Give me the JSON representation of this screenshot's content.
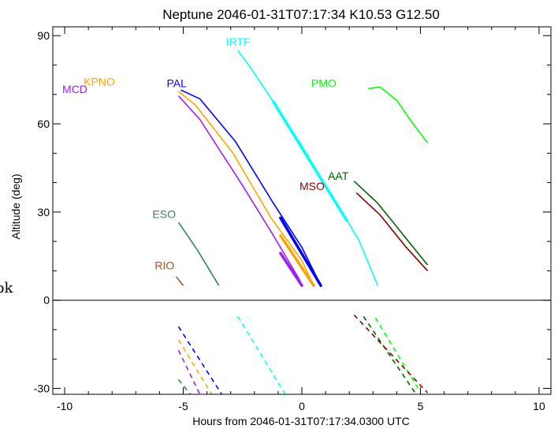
{
  "chart_data": {
    "type": "line",
    "title": "Neptune 2046-01-31T07:17:34  K10.53  G12.50",
    "xlabel": "Hours from 2046-01-31T07:17:34.0300 UTC",
    "ylabel": "Altitude (deg)",
    "xlim": [
      -10.5,
      10.5
    ],
    "ylim": [
      -32,
      93
    ],
    "x_ticks": [
      -10,
      -5,
      0,
      5,
      10
    ],
    "y_ticks": [
      -30,
      0,
      30,
      60,
      90
    ],
    "x_tick_labels": [
      "-10",
      "-5",
      "0",
      "5",
      "10"
    ],
    "y_tick_labels": [
      "-30",
      "0",
      "30",
      "60",
      "90"
    ],
    "zero_line": true,
    "grid": false,
    "legend": "inline labels",
    "edge_text": "pk",
    "series": [
      {
        "name": "IRTF",
        "color": "#00ffff",
        "label_at": [
          -3.2,
          86.5
        ],
        "above": [
          [
            -2.7,
            85
          ],
          [
            -2.2,
            79.5
          ],
          [
            -1.2,
            67.5
          ],
          [
            0.0,
            52.5
          ],
          [
            1.2,
            36.5
          ],
          [
            2.4,
            20.5
          ],
          [
            3.2,
            5
          ]
        ],
        "thick": [
          [
            -1.2,
            67.5
          ],
          [
            1.9,
            27
          ]
        ],
        "below": [
          [
            -2.7,
            -5.5
          ],
          [
            -0.7,
            -32
          ]
        ]
      },
      {
        "name": "PAL",
        "color": "#0000ff",
        "label_at": [
          -5.7,
          72.5
        ],
        "above": [
          [
            -5.1,
            71.5
          ],
          [
            -4.3,
            68.5
          ],
          [
            -2.8,
            54
          ],
          [
            -1.2,
            33
          ],
          [
            0.0,
            18
          ],
          [
            0.8,
            5
          ]
        ],
        "thick": [
          [
            -0.9,
            28
          ],
          [
            0.8,
            5
          ]
        ],
        "below": [
          [
            -5.2,
            -9
          ],
          [
            -3.3,
            -33
          ]
        ]
      },
      {
        "name": "KPNO",
        "color": "#ffa500",
        "label_at": [
          -9.2,
          73
        ],
        "above": [
          [
            -5.2,
            71
          ],
          [
            -4.5,
            66.5
          ],
          [
            -2.9,
            50
          ],
          [
            -1.3,
            28
          ],
          [
            0.0,
            13.5
          ],
          [
            0.5,
            5
          ]
        ],
        "thick": [
          [
            -0.9,
            22
          ],
          [
            0.5,
            5
          ]
        ],
        "below": [
          [
            -5.2,
            -13.5
          ],
          [
            -3.8,
            -32
          ]
        ]
      },
      {
        "name": "MCD",
        "color": "#a020f0",
        "label_at": [
          -10.1,
          70.5
        ],
        "above": [
          [
            -5.2,
            69.5
          ],
          [
            -4.3,
            61.5
          ],
          [
            -2.5,
            39
          ],
          [
            -1.2,
            22
          ],
          [
            -0.1,
            7
          ],
          [
            0.0,
            5
          ]
        ],
        "thick": [
          [
            -0.9,
            16
          ],
          [
            0.0,
            5
          ]
        ],
        "below": [
          [
            -5.2,
            -17
          ],
          [
            -4.3,
            -32
          ]
        ]
      },
      {
        "name": "ESO",
        "color": "#2e8b57",
        "label_at": [
          -6.3,
          28
        ],
        "above": [
          [
            -5.2,
            26.5
          ],
          [
            -4.4,
            17
          ],
          [
            -3.5,
            5
          ]
        ],
        "below": [
          [
            -5.2,
            -27
          ],
          [
            -4.6,
            -33
          ]
        ]
      },
      {
        "name": "RIO",
        "color": "#a0522d",
        "label_at": [
          -6.2,
          10.5
        ],
        "above": [
          [
            -5.3,
            8
          ],
          [
            -5.0,
            5
          ]
        ],
        "below": []
      },
      {
        "name": "PMO",
        "color": "#00ff00",
        "label_at": [
          0.4,
          72.5
        ],
        "above": [
          [
            2.8,
            72
          ],
          [
            3.3,
            72.5
          ],
          [
            4.0,
            68
          ],
          [
            4.6,
            61
          ],
          [
            5.3,
            53.5
          ]
        ],
        "below": [
          [
            3.1,
            -6
          ],
          [
            4.9,
            -30
          ]
        ]
      },
      {
        "name": "AAT",
        "color": "#006400",
        "label_at": [
          1.1,
          41
        ],
        "above": [
          [
            2.2,
            40.5
          ],
          [
            3.2,
            33
          ],
          [
            4.3,
            22
          ],
          [
            5.3,
            12
          ]
        ],
        "below": [
          [
            2.6,
            -5.5
          ],
          [
            4.9,
            -33
          ]
        ]
      },
      {
        "name": "MSO",
        "color": "#8b0000",
        "label_at": [
          -0.1,
          37.5
        ],
        "above": [
          [
            2.3,
            36.5
          ],
          [
            3.3,
            29
          ],
          [
            4.4,
            18
          ],
          [
            5.3,
            10
          ]
        ],
        "below": [
          [
            2.2,
            -5
          ],
          [
            5.3,
            -31.5
          ]
        ]
      }
    ]
  }
}
